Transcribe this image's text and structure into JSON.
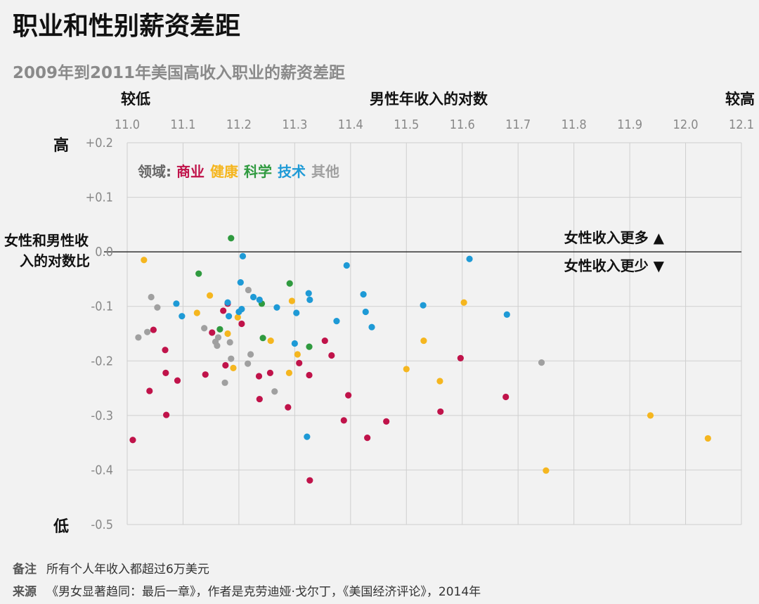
{
  "title": "职业和性别薪资差距",
  "subtitle": "2009年到2011年美国高收入职业的薪资差距",
  "top_axis": {
    "label": "男性年收入的对数",
    "low": "较低",
    "high": "较高"
  },
  "y_axis": {
    "label_line1": "女性和男性收",
    "label_line2": "入的对数比",
    "high": "高",
    "low": "低"
  },
  "annotations": {
    "women_more": "女性收入更多 ▲",
    "women_less": "女性收入更少 ▼"
  },
  "legend": {
    "prefix": "领域:",
    "items": [
      {
        "name": "商业",
        "color": "#c0134a"
      },
      {
        "name": "健康",
        "color": "#f5b61f"
      },
      {
        "name": "科学",
        "color": "#2f9a3f"
      },
      {
        "name": "技术",
        "color": "#1e9ad6"
      },
      {
        "name": "其他",
        "color": "#a0a0a0"
      }
    ]
  },
  "footer": {
    "note_key": "备注",
    "note": "所有个人年收入都超过6万美元",
    "source_key": "来源",
    "source": "《男女显著趋同：最后一章》，作者是克劳迪娅·戈尔丁，《美国经济评论》，2014年"
  },
  "chart_data": {
    "type": "scatter",
    "xlim": [
      11.0,
      12.1
    ],
    "ylim": [
      -0.5,
      0.2
    ],
    "x_ticks": [
      "11.0",
      "11.1",
      "11.2",
      "11.3",
      "11.4",
      "11.5",
      "11.6",
      "11.7",
      "11.8",
      "11.9",
      "12.0",
      "12.1"
    ],
    "y_ticks": [
      {
        "value": 0.2,
        "label": "+0.2"
      },
      {
        "value": 0.1,
        "label": "+0.1"
      },
      {
        "value": 0.0,
        "label": "0.0"
      },
      {
        "value": -0.1,
        "label": "-0.1"
      },
      {
        "value": -0.2,
        "label": "-0.2"
      },
      {
        "value": -0.3,
        "label": "-0.3"
      },
      {
        "value": -0.4,
        "label": "-0.4"
      },
      {
        "value": -0.5,
        "label": "-0.5"
      }
    ],
    "grid": true,
    "series": [
      {
        "name": "商业",
        "color": "#c0134a",
        "points": [
          [
            11.01,
            -0.345
          ],
          [
            11.04,
            -0.255
          ],
          [
            11.047,
            -0.143
          ],
          [
            11.068,
            -0.18
          ],
          [
            11.069,
            -0.222
          ],
          [
            11.07,
            -0.299
          ],
          [
            11.09,
            -0.236
          ],
          [
            11.14,
            -0.225
          ],
          [
            11.152,
            -0.148
          ],
          [
            11.172,
            -0.108
          ],
          [
            11.176,
            -0.208
          ],
          [
            11.18,
            -0.095
          ],
          [
            11.205,
            -0.132
          ],
          [
            11.236,
            -0.228
          ],
          [
            11.237,
            -0.27
          ],
          [
            11.256,
            -0.222
          ],
          [
            11.288,
            -0.285
          ],
          [
            11.308,
            -0.204
          ],
          [
            11.326,
            -0.226
          ],
          [
            11.327,
            -0.419
          ],
          [
            11.354,
            -0.163
          ],
          [
            11.366,
            -0.19
          ],
          [
            11.388,
            -0.309
          ],
          [
            11.396,
            -0.263
          ],
          [
            11.43,
            -0.341
          ],
          [
            11.464,
            -0.311
          ],
          [
            11.561,
            -0.293
          ],
          [
            11.597,
            -0.195
          ],
          [
            11.678,
            -0.266
          ]
        ]
      },
      {
        "name": "健康",
        "color": "#f5b61f",
        "points": [
          [
            11.03,
            -0.015
          ],
          [
            11.125,
            -0.112
          ],
          [
            11.148,
            -0.08
          ],
          [
            11.18,
            -0.15
          ],
          [
            11.19,
            -0.213
          ],
          [
            11.198,
            -0.12
          ],
          [
            11.257,
            -0.163
          ],
          [
            11.29,
            -0.222
          ],
          [
            11.295,
            -0.09
          ],
          [
            11.305,
            -0.188
          ],
          [
            11.5,
            -0.215
          ],
          [
            11.531,
            -0.163
          ],
          [
            11.56,
            -0.237
          ],
          [
            11.603,
            -0.093
          ],
          [
            11.75,
            -0.401
          ],
          [
            11.937,
            -0.3
          ],
          [
            12.04,
            -0.342
          ]
        ]
      },
      {
        "name": "科学",
        "color": "#2f9a3f",
        "points": [
          [
            11.128,
            -0.04
          ],
          [
            11.166,
            -0.142
          ],
          [
            11.186,
            0.025
          ],
          [
            11.241,
            -0.095
          ],
          [
            11.243,
            -0.158
          ],
          [
            11.291,
            -0.058
          ],
          [
            11.326,
            -0.174
          ]
        ]
      },
      {
        "name": "技术",
        "color": "#1e9ad6",
        "points": [
          [
            11.088,
            -0.095
          ],
          [
            11.098,
            -0.118
          ],
          [
            11.18,
            -0.093
          ],
          [
            11.182,
            -0.118
          ],
          [
            11.2,
            -0.11
          ],
          [
            11.203,
            -0.056
          ],
          [
            11.205,
            -0.105
          ],
          [
            11.207,
            -0.008
          ],
          [
            11.226,
            -0.083
          ],
          [
            11.237,
            -0.088
          ],
          [
            11.268,
            -0.102
          ],
          [
            11.3,
            -0.168
          ],
          [
            11.303,
            -0.112
          ],
          [
            11.322,
            -0.339
          ],
          [
            11.325,
            -0.076
          ],
          [
            11.327,
            -0.088
          ],
          [
            11.375,
            -0.127
          ],
          [
            11.393,
            -0.025
          ],
          [
            11.423,
            -0.078
          ],
          [
            11.427,
            -0.11
          ],
          [
            11.438,
            -0.138
          ],
          [
            11.53,
            -0.098
          ],
          [
            11.613,
            -0.013
          ],
          [
            11.68,
            -0.115
          ]
        ]
      },
      {
        "name": "其他",
        "color": "#a0a0a0",
        "points": [
          [
            11.02,
            -0.157
          ],
          [
            11.036,
            -0.147
          ],
          [
            11.043,
            -0.083
          ],
          [
            11.054,
            -0.102
          ],
          [
            11.138,
            -0.14
          ],
          [
            11.158,
            -0.165
          ],
          [
            11.161,
            -0.172
          ],
          [
            11.163,
            -0.157
          ],
          [
            11.175,
            -0.24
          ],
          [
            11.184,
            -0.166
          ],
          [
            11.186,
            -0.196
          ],
          [
            11.216,
            -0.205
          ],
          [
            11.217,
            -0.07
          ],
          [
            11.221,
            -0.188
          ],
          [
            11.264,
            -0.256
          ],
          [
            11.742,
            -0.203
          ]
        ]
      }
    ]
  }
}
